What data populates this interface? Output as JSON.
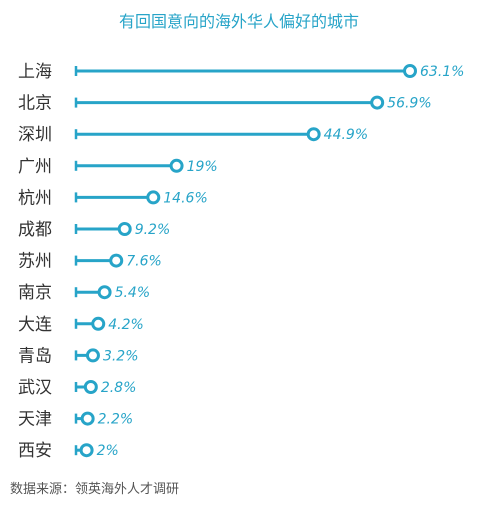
{
  "chart_data": {
    "type": "bar",
    "title": "有回国意向的海外华人偏好的城市",
    "categories": [
      "上海",
      "北京",
      "深圳",
      "广州",
      "杭州",
      "成都",
      "苏州",
      "南京",
      "大连",
      "青岛",
      "武汉",
      "天津",
      "西安"
    ],
    "values": [
      63.1,
      56.9,
      44.9,
      19,
      14.6,
      9.2,
      7.6,
      5.4,
      4.2,
      3.2,
      2.8,
      2.2,
      2
    ],
    "value_labels": [
      "63.1%",
      "56.9%",
      "44.9%",
      "19%",
      "14.6%",
      "9.2%",
      "7.6%",
      "5.4%",
      "4.2%",
      "3.2%",
      "2.8%",
      "2.2%",
      "2%"
    ],
    "unit": "%",
    "grid": false,
    "legend": "none",
    "color": "#27a4c8"
  },
  "source": "数据来源：领英海外人才调研"
}
